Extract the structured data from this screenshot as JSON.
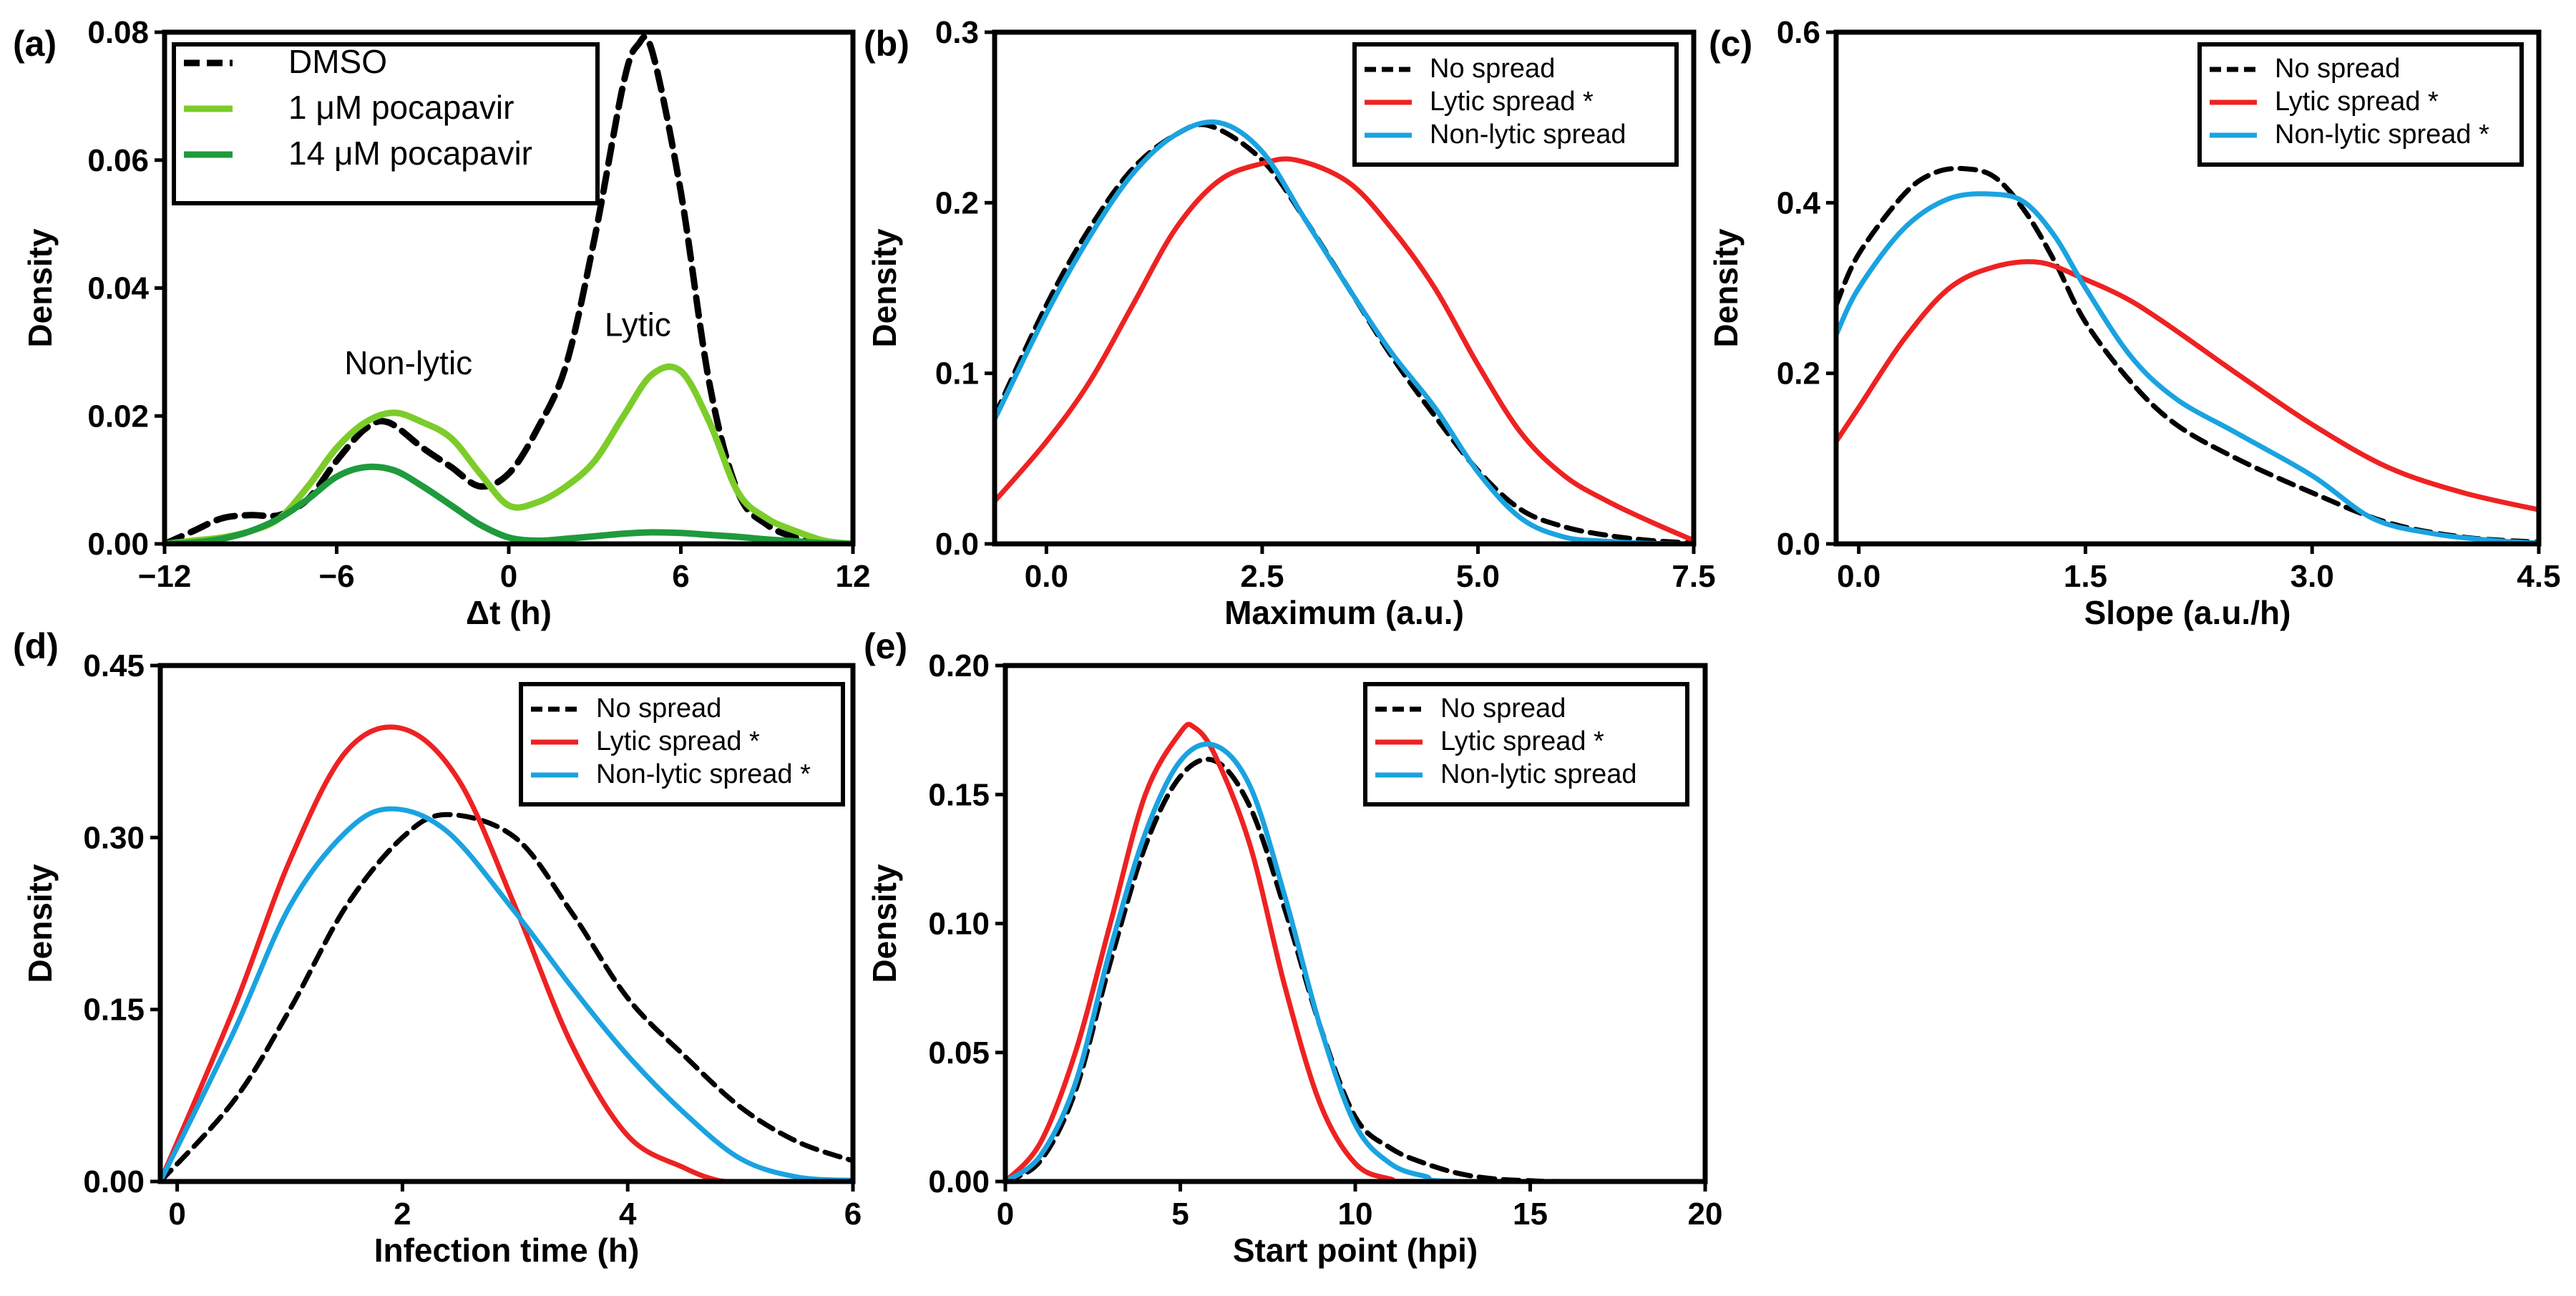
{
  "figure": {
    "title": ""
  },
  "colors": {
    "black": "#000000",
    "red": "#ee2222",
    "blue": "#1aa3e0",
    "lightgreen": "#7ccc2a",
    "darkgreen": "#1f9a3c"
  },
  "chart_data": [
    {
      "panel": "(a)",
      "type": "line",
      "xlabel": "Δt (h)",
      "ylabel": "Density",
      "xlim": [
        -12,
        12
      ],
      "ylim": [
        0,
        0.08
      ],
      "xticks": [
        -12,
        -6,
        0,
        6,
        12
      ],
      "xticklabels": [
        "−12",
        "−6",
        "0",
        "6",
        "12"
      ],
      "yticks": [
        0,
        0.02,
        0.04,
        0.06,
        0.08
      ],
      "yticklabels": [
        "0.00",
        "0.02",
        "0.04",
        "0.06",
        "0.08"
      ],
      "legend_position": "top-left",
      "annotations": [
        {
          "text": "Non-lytic",
          "x": -3.5,
          "y": 0.0265
        },
        {
          "text": "Lytic",
          "x": 4.5,
          "y": 0.0325
        }
      ],
      "series": [
        {
          "name": "DMSO",
          "color": "#000000",
          "dash": "dashed",
          "x": [
            -12,
            -11,
            -10,
            -9,
            -8,
            -7,
            -6,
            -5,
            -4.2,
            -3,
            -2,
            -1,
            0,
            1,
            2,
            3,
            4,
            4.5,
            5,
            6,
            7,
            8,
            9,
            10,
            11,
            12
          ],
          "y": [
            0,
            0.002,
            0.004,
            0.0045,
            0.0045,
            0.007,
            0.013,
            0.018,
            0.019,
            0.015,
            0.012,
            0.009,
            0.011,
            0.018,
            0.028,
            0.048,
            0.072,
            0.078,
            0.077,
            0.055,
            0.025,
            0.008,
            0.003,
            0.001,
            0,
            0
          ]
        },
        {
          "name": "1 μM pocapavir",
          "color": "#7ccc2a",
          "dash": "solid",
          "x": [
            -12,
            -11,
            -10,
            -9,
            -8,
            -7,
            -6,
            -5,
            -4,
            -3,
            -2,
            -1,
            0,
            1,
            2,
            3,
            4,
            5,
            6,
            7,
            8,
            9,
            10,
            11,
            12
          ],
          "y": [
            0,
            0.0005,
            0.001,
            0.002,
            0.004,
            0.009,
            0.015,
            0.019,
            0.0205,
            0.019,
            0.0165,
            0.011,
            0.006,
            0.0065,
            0.009,
            0.013,
            0.02,
            0.0265,
            0.027,
            0.019,
            0.008,
            0.004,
            0.002,
            0.0005,
            0
          ]
        },
        {
          "name": "14 μM pocapavir",
          "color": "#1f9a3c",
          "dash": "solid",
          "x": [
            -12,
            -11,
            -10,
            -9,
            -8,
            -7,
            -6,
            -5,
            -4,
            -3,
            -2,
            -1,
            0,
            1,
            2,
            3,
            4,
            5,
            6,
            7,
            8,
            9,
            10,
            11,
            12
          ],
          "y": [
            0,
            0.0002,
            0.0008,
            0.002,
            0.004,
            0.007,
            0.0105,
            0.012,
            0.0115,
            0.009,
            0.006,
            0.003,
            0.001,
            0.0005,
            0.0008,
            0.0012,
            0.0016,
            0.0018,
            0.0017,
            0.0014,
            0.0011,
            0.0007,
            0.0004,
            0.0001,
            0
          ]
        }
      ]
    },
    {
      "panel": "(b)",
      "type": "line",
      "xlabel": "Maximum (a.u.)",
      "ylabel": "Density",
      "xlim": [
        -0.6,
        7.5
      ],
      "ylim": [
        0,
        0.3
      ],
      "xticks": [
        0,
        2.5,
        5,
        7.5
      ],
      "xticklabels": [
        "0.0",
        "2.5",
        "5.0",
        "7.5"
      ],
      "yticks": [
        0,
        0.1,
        0.2,
        0.3
      ],
      "yticklabels": [
        "0.0",
        "0.1",
        "0.2",
        "0.3"
      ],
      "legend_position": "top-right",
      "series": [
        {
          "name": "No spread",
          "color": "#000000",
          "dash": "dashed",
          "x": [
            -0.6,
            0,
            0.5,
            1,
            1.5,
            1.9,
            2.5,
            3,
            3.5,
            4,
            4.5,
            5,
            5.5,
            6,
            6.5,
            7,
            7.5
          ],
          "y": [
            0.075,
            0.14,
            0.185,
            0.22,
            0.24,
            0.245,
            0.225,
            0.19,
            0.15,
            0.11,
            0.075,
            0.043,
            0.02,
            0.01,
            0.005,
            0.002,
            0.0005
          ]
        },
        {
          "name": "Lytic spread *",
          "color": "#ee2222",
          "dash": "solid",
          "x": [
            -0.6,
            0,
            0.5,
            1,
            1.5,
            2,
            2.5,
            2.9,
            3.5,
            4,
            4.5,
            5,
            5.5,
            6,
            6.5,
            7,
            7.5
          ],
          "y": [
            0.025,
            0.06,
            0.095,
            0.14,
            0.185,
            0.213,
            0.223,
            0.225,
            0.212,
            0.185,
            0.15,
            0.105,
            0.065,
            0.04,
            0.025,
            0.013,
            0.002
          ]
        },
        {
          "name": "Non-lytic spread",
          "color": "#1aa3e0",
          "dash": "solid",
          "x": [
            -0.6,
            0,
            0.5,
            1,
            1.5,
            2,
            2.5,
            3,
            3.5,
            4,
            4.5,
            5,
            5.5,
            6,
            6.5,
            7,
            7.5
          ],
          "y": [
            0.073,
            0.135,
            0.18,
            0.217,
            0.24,
            0.247,
            0.23,
            0.19,
            0.15,
            0.112,
            0.08,
            0.042,
            0.015,
            0.004,
            0.0015,
            0.0003,
            0
          ]
        }
      ]
    },
    {
      "panel": "(c)",
      "type": "line",
      "xlabel": "Slope (a.u./h)",
      "ylabel": "Density",
      "xlim": [
        -0.15,
        4.5
      ],
      "ylim": [
        0,
        0.6
      ],
      "xticks": [
        0,
        1.5,
        3,
        4.5
      ],
      "xticklabels": [
        "0.0",
        "1.5",
        "3.0",
        "4.5"
      ],
      "yticks": [
        0,
        0.2,
        0.4,
        0.6
      ],
      "yticklabels": [
        "0.0",
        "0.2",
        "0.4",
        "0.6"
      ],
      "legend_position": "top-right",
      "series": [
        {
          "name": "No spread",
          "color": "#000000",
          "dash": "dashed",
          "x": [
            -0.15,
            0,
            0.3,
            0.5,
            0.7,
            0.9,
            1.1,
            1.3,
            1.5,
            1.8,
            2.1,
            2.5,
            3,
            3.5,
            4,
            4.5
          ],
          "y": [
            0.28,
            0.34,
            0.41,
            0.435,
            0.44,
            0.43,
            0.39,
            0.33,
            0.26,
            0.19,
            0.14,
            0.1,
            0.06,
            0.025,
            0.008,
            0.002
          ]
        },
        {
          "name": "Lytic spread *",
          "color": "#ee2222",
          "dash": "solid",
          "x": [
            -0.15,
            0,
            0.3,
            0.6,
            0.9,
            1.2,
            1.5,
            1.8,
            2.1,
            2.5,
            3,
            3.5,
            4,
            4.5
          ],
          "y": [
            0.12,
            0.16,
            0.24,
            0.3,
            0.325,
            0.33,
            0.31,
            0.285,
            0.25,
            0.2,
            0.14,
            0.09,
            0.06,
            0.04
          ]
        },
        {
          "name": "Non-lytic spread *",
          "color": "#1aa3e0",
          "dash": "solid",
          "x": [
            -0.15,
            0,
            0.3,
            0.6,
            0.9,
            1.1,
            1.3,
            1.5,
            1.8,
            2.1,
            2.5,
            3,
            3.4,
            3.8,
            4.2,
            4.5
          ],
          "y": [
            0.245,
            0.3,
            0.37,
            0.405,
            0.41,
            0.4,
            0.36,
            0.3,
            0.22,
            0.17,
            0.13,
            0.08,
            0.03,
            0.012,
            0.004,
            0.001
          ]
        }
      ]
    },
    {
      "panel": "(d)",
      "type": "line",
      "xlabel": "Infection time (h)",
      "ylabel": "Density",
      "xlim": [
        -0.15,
        6
      ],
      "ylim": [
        0,
        0.45
      ],
      "xticks": [
        0,
        2,
        4,
        6
      ],
      "xticklabels": [
        "0",
        "2",
        "4",
        "6"
      ],
      "yticks": [
        0,
        0.15,
        0.3,
        0.45
      ],
      "yticklabels": [
        "0.00",
        "0.15",
        "0.30",
        "0.45"
      ],
      "legend_position": "top-right",
      "series": [
        {
          "name": "No spread",
          "color": "#000000",
          "dash": "dashed",
          "x": [
            -0.15,
            0.5,
            1,
            1.5,
            2,
            2.4,
            3,
            3.5,
            4,
            4.5,
            5,
            5.5,
            6
          ],
          "y": [
            0,
            0.07,
            0.15,
            0.24,
            0.3,
            0.32,
            0.3,
            0.235,
            0.16,
            0.11,
            0.065,
            0.035,
            0.018
          ]
        },
        {
          "name": "Lytic spread *",
          "color": "#ee2222",
          "dash": "solid",
          "x": [
            -0.15,
            0.5,
            1,
            1.5,
            2,
            2.5,
            3,
            3.5,
            4,
            4.5,
            4.8,
            5
          ],
          "y": [
            0,
            0.15,
            0.28,
            0.375,
            0.395,
            0.35,
            0.24,
            0.12,
            0.04,
            0.012,
            0.001,
            0
          ]
        },
        {
          "name": "Non-lytic spread *",
          "color": "#1aa3e0",
          "dash": "solid",
          "x": [
            -0.15,
            0.5,
            1,
            1.5,
            1.9,
            2.4,
            3,
            3.5,
            4,
            4.5,
            5,
            5.5,
            6
          ],
          "y": [
            0,
            0.13,
            0.24,
            0.305,
            0.325,
            0.305,
            0.235,
            0.17,
            0.11,
            0.06,
            0.02,
            0.004,
            0.001
          ]
        }
      ]
    },
    {
      "panel": "(e)",
      "type": "line",
      "xlabel": "Start point (hpi)",
      "ylabel": "Density",
      "xlim": [
        0,
        20
      ],
      "ylim": [
        0,
        0.2
      ],
      "xticks": [
        0,
        5,
        10,
        15,
        20
      ],
      "xticklabels": [
        "0",
        "5",
        "10",
        "15",
        "20"
      ],
      "yticks": [
        0,
        0.05,
        0.1,
        0.15,
        0.2
      ],
      "yticklabels": [
        "0.00",
        "0.05",
        "0.10",
        "0.15",
        "0.20"
      ],
      "legend_position": "top-right",
      "series": [
        {
          "name": "No spread",
          "color": "#000000",
          "dash": "dashed",
          "x": [
            0,
            1,
            2,
            3,
            4,
            5,
            6,
            7,
            8,
            9,
            10,
            11,
            12,
            13,
            14,
            15,
            16,
            20
          ],
          "y": [
            0,
            0.008,
            0.035,
            0.085,
            0.13,
            0.157,
            0.163,
            0.145,
            0.105,
            0.06,
            0.025,
            0.013,
            0.007,
            0.003,
            0.001,
            0.0003,
            0,
            0
          ]
        },
        {
          "name": "Lytic spread *",
          "color": "#ee2222",
          "dash": "solid",
          "x": [
            0,
            1,
            2,
            3,
            4,
            5,
            5.4,
            6,
            7,
            8,
            9,
            10,
            11,
            12,
            20
          ],
          "y": [
            0,
            0.015,
            0.05,
            0.1,
            0.15,
            0.174,
            0.176,
            0.165,
            0.13,
            0.075,
            0.03,
            0.007,
            0.001,
            0,
            0
          ]
        },
        {
          "name": "Non-lytic spread",
          "color": "#1aa3e0",
          "dash": "solid",
          "x": [
            0,
            1,
            2,
            3,
            4,
            5,
            6,
            7,
            8,
            9,
            10,
            11,
            12,
            13,
            20
          ],
          "y": [
            0,
            0.01,
            0.038,
            0.09,
            0.135,
            0.163,
            0.169,
            0.153,
            0.11,
            0.06,
            0.022,
            0.007,
            0.002,
            0,
            0
          ]
        }
      ]
    }
  ]
}
